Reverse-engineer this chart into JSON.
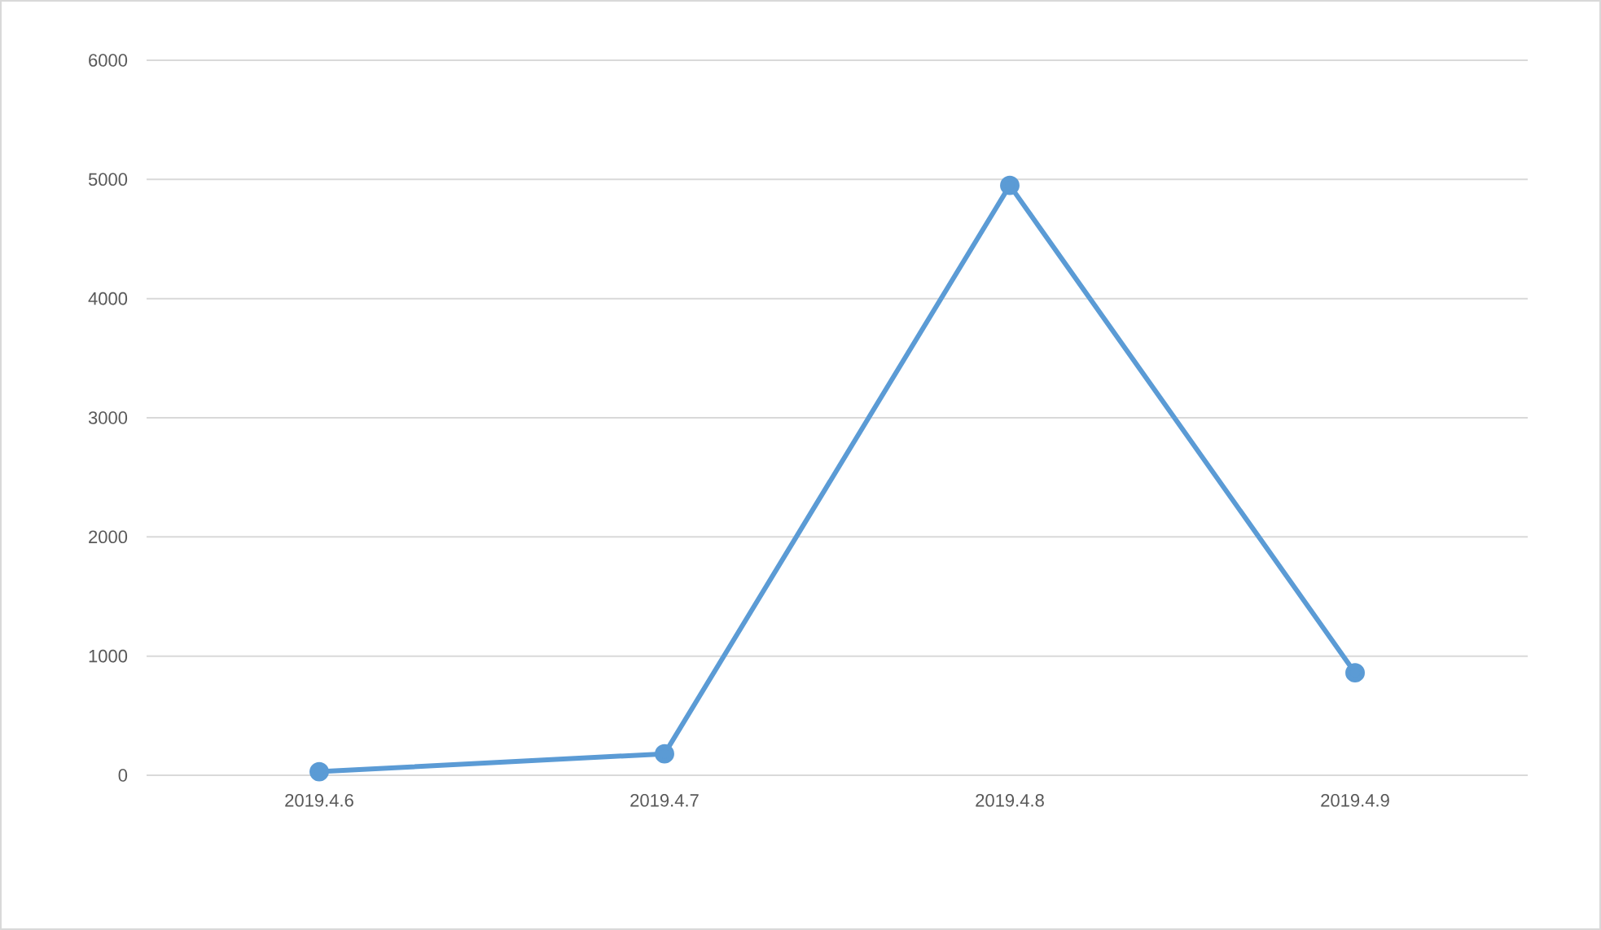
{
  "chart_data": {
    "type": "line",
    "categories": [
      "2019.4.6",
      "2019.4.7",
      "2019.4.8",
      "2019.4.9"
    ],
    "series": [
      {
        "color": "#5b9bd5",
        "values": [
          30,
          180,
          4950,
          860
        ]
      }
    ],
    "ylim": [
      0,
      6000
    ],
    "yticks": [
      0,
      1000,
      2000,
      3000,
      4000,
      5000,
      6000
    ],
    "grid": "y",
    "marker": "circle",
    "line_style": "solid"
  }
}
